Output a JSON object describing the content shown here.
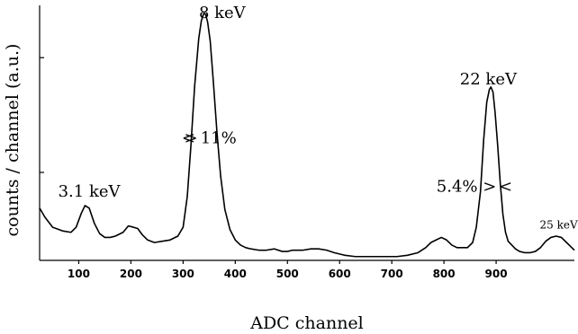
{
  "chart_data": {
    "type": "line",
    "title": "",
    "xlabel": "ADC channel",
    "ylabel": "counts / channel (a.u.)",
    "xlim": [
      25,
      1050
    ],
    "ylim": [
      0,
      1.0
    ],
    "x_ticks": [
      100,
      200,
      300,
      400,
      500,
      600,
      700,
      800,
      900
    ],
    "y_ticks": [
      0.345,
      0.795
    ],
    "grid": false,
    "series": [
      {
        "x": [
          25,
          35,
          50,
          70,
          85,
          95,
          105,
          112,
          120,
          130,
          140,
          150,
          160,
          170,
          185,
          195,
          205,
          213,
          222,
          232,
          245,
          260,
          275,
          290,
          300,
          308,
          315,
          322,
          330,
          335,
          340,
          343,
          347,
          352,
          358,
          365,
          372,
          380,
          390,
          400,
          410,
          420,
          430,
          445,
          460,
          475,
          490,
          500,
          510,
          520,
          530,
          545,
          560,
          575,
          590,
          610,
          630,
          650,
          670,
          690,
          710,
          730,
          750,
          765,
          775,
          785,
          795,
          805,
          815,
          825,
          835,
          845,
          855,
          862,
          870,
          876,
          882,
          887,
          890,
          894,
          898,
          903,
          908,
          913,
          918,
          923,
          930,
          937,
          945,
          955,
          965,
          975,
          985,
          995,
          1005,
          1015,
          1025,
          1035,
          1045,
          1050
        ],
        "y": [
          0.205,
          0.17,
          0.13,
          0.115,
          0.11,
          0.13,
          0.185,
          0.215,
          0.205,
          0.145,
          0.105,
          0.09,
          0.09,
          0.095,
          0.11,
          0.135,
          0.13,
          0.125,
          0.1,
          0.08,
          0.07,
          0.075,
          0.08,
          0.095,
          0.13,
          0.25,
          0.45,
          0.68,
          0.87,
          0.94,
          0.97,
          0.965,
          0.935,
          0.86,
          0.7,
          0.5,
          0.33,
          0.2,
          0.12,
          0.08,
          0.06,
          0.05,
          0.045,
          0.04,
          0.04,
          0.045,
          0.035,
          0.035,
          0.04,
          0.04,
          0.04,
          0.045,
          0.045,
          0.04,
          0.03,
          0.02,
          0.015,
          0.015,
          0.015,
          0.015,
          0.015,
          0.02,
          0.03,
          0.05,
          0.07,
          0.08,
          0.09,
          0.08,
          0.06,
          0.05,
          0.05,
          0.05,
          0.07,
          0.13,
          0.27,
          0.47,
          0.62,
          0.67,
          0.68,
          0.66,
          0.58,
          0.45,
          0.3,
          0.18,
          0.11,
          0.075,
          0.06,
          0.045,
          0.035,
          0.03,
          0.03,
          0.035,
          0.05,
          0.075,
          0.09,
          0.095,
          0.09,
          0.07,
          0.05,
          0.04
        ]
      }
    ],
    "annotations": [
      {
        "text": "8 keV",
        "x": 375,
        "y": 0.95
      },
      {
        "text": "22 keV",
        "x": 885,
        "y": 0.69
      },
      {
        "text": "3.1 keV",
        "x": 120,
        "y": 0.25
      },
      {
        "text": "25 keV",
        "x": 1020,
        "y": 0.125
      },
      {
        "text": ">",
        "x": 315,
        "y": 0.46
      },
      {
        "text": "< 11%",
        "x": 350,
        "y": 0.46
      },
      {
        "text": "5.4% >",
        "x": 843,
        "y": 0.27
      },
      {
        "text": "<",
        "x": 918,
        "y": 0.27
      }
    ]
  }
}
